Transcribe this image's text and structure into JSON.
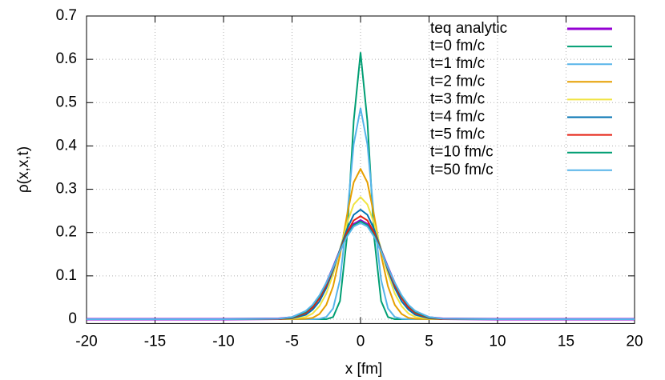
{
  "chart_data": {
    "type": "line",
    "x_label": "x [fm]",
    "y_label": "ρ(x,x,t)",
    "x": [
      -20,
      -10,
      -6,
      -5,
      -4,
      -3.5,
      -3,
      -2.5,
      -2,
      -1.5,
      -1,
      -0.5,
      0,
      0.5,
      1,
      1.5,
      2,
      2.5,
      3,
      3.5,
      4,
      5,
      6,
      10,
      20
    ],
    "series": [
      {
        "name": "teq analytic",
        "color": "#9400d3",
        "width": 3,
        "values": [
          0,
          0,
          0.001,
          0.004,
          0.017,
          0.031,
          0.052,
          0.082,
          0.119,
          0.158,
          0.194,
          0.219,
          0.228,
          0.219,
          0.194,
          0.158,
          0.119,
          0.082,
          0.052,
          0.031,
          0.017,
          0.004,
          0.001,
          0,
          0
        ]
      },
      {
        "name": "t=0 fm/c",
        "color": "#009e73",
        "width": 2,
        "values": [
          0,
          0,
          0,
          0,
          0,
          0,
          0,
          0,
          0.005,
          0.042,
          0.187,
          0.457,
          0.615,
          0.457,
          0.187,
          0.042,
          0.005,
          0,
          0,
          0,
          0,
          0,
          0,
          0,
          0
        ]
      },
      {
        "name": "t=1 fm/c",
        "color": "#56b4e9",
        "width": 2,
        "values": [
          0,
          0,
          0,
          0,
          0,
          0,
          0.001,
          0.005,
          0.025,
          0.091,
          0.231,
          0.404,
          0.487,
          0.404,
          0.231,
          0.091,
          0.025,
          0.005,
          0.001,
          0,
          0,
          0,
          0,
          0,
          0
        ]
      },
      {
        "name": "t=2 fm/c",
        "color": "#e69f00",
        "width": 2,
        "values": [
          0,
          0,
          0,
          0,
          0.001,
          0.003,
          0.012,
          0.033,
          0.076,
          0.148,
          0.238,
          0.316,
          0.347,
          0.316,
          0.238,
          0.148,
          0.076,
          0.033,
          0.012,
          0.003,
          0.001,
          0,
          0,
          0,
          0
        ]
      },
      {
        "name": "t=3 fm/c",
        "color": "#f0e442",
        "width": 2,
        "values": [
          0,
          0,
          0,
          0.001,
          0.005,
          0.013,
          0.03,
          0.059,
          0.104,
          0.161,
          0.22,
          0.265,
          0.282,
          0.265,
          0.22,
          0.161,
          0.104,
          0.059,
          0.03,
          0.013,
          0.005,
          0.001,
          0,
          0,
          0
        ]
      },
      {
        "name": "t=4 fm/c",
        "color": "#0072b2",
        "width": 2,
        "values": [
          0,
          0,
          0,
          0.002,
          0.01,
          0.022,
          0.041,
          0.072,
          0.113,
          0.161,
          0.207,
          0.241,
          0.253,
          0.241,
          0.207,
          0.161,
          0.113,
          0.072,
          0.041,
          0.022,
          0.01,
          0.002,
          0,
          0,
          0
        ]
      },
      {
        "name": "t=5 fm/c",
        "color": "#e51e10",
        "width": 2,
        "values": [
          0,
          0,
          0,
          0.003,
          0.014,
          0.027,
          0.048,
          0.078,
          0.117,
          0.159,
          0.199,
          0.228,
          0.238,
          0.228,
          0.199,
          0.159,
          0.117,
          0.078,
          0.048,
          0.027,
          0.014,
          0.003,
          0,
          0,
          0
        ]
      },
      {
        "name": "t=10 fm/c",
        "color": "#009e73",
        "width": 2,
        "values": [
          0,
          0,
          0.001,
          0.004,
          0.017,
          0.032,
          0.053,
          0.083,
          0.119,
          0.158,
          0.193,
          0.217,
          0.226,
          0.217,
          0.193,
          0.158,
          0.119,
          0.083,
          0.053,
          0.032,
          0.017,
          0.004,
          0.001,
          0,
          0
        ]
      },
      {
        "name": "t=50 fm/c",
        "color": "#56b4e9",
        "width": 2,
        "values": [
          0,
          0,
          0.001,
          0.005,
          0.019,
          0.033,
          0.055,
          0.084,
          0.119,
          0.157,
          0.19,
          0.214,
          0.222,
          0.214,
          0.19,
          0.157,
          0.119,
          0.084,
          0.055,
          0.033,
          0.019,
          0.005,
          0.001,
          0,
          0
        ]
      }
    ],
    "xlim": [
      -20,
      20
    ],
    "ylim": [
      -0.01,
      0.7
    ],
    "xticks": [
      -20,
      -15,
      -10,
      -5,
      0,
      5,
      10,
      15,
      20
    ],
    "yticks": [
      0,
      0.1,
      0.2,
      0.3,
      0.4,
      0.5,
      0.6,
      0.7
    ],
    "grid": true,
    "legend": "top-right"
  }
}
